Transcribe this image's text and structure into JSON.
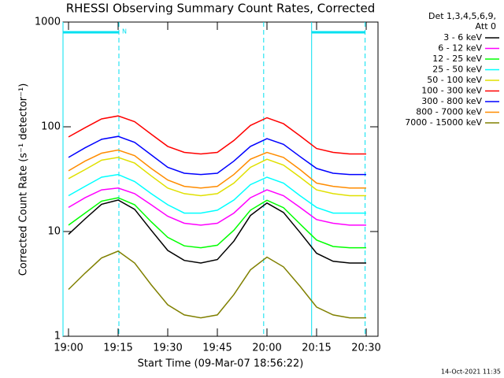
{
  "chart_data": {
    "type": "line",
    "title": "RHESSI Observing Summary Count Rates, Corrected",
    "legend_title": [
      "Det 1,3,4,5,6,9,",
      "Att 0"
    ],
    "y_label": "Corrected Count Rate (s⁻¹ detector⁻¹)",
    "x_label": "Start Time (09-Mar-07 18:56:22)",
    "footer": "14-Oct-2021 11:35",
    "log_y": true,
    "ylim": [
      1,
      1000
    ],
    "yticks": [
      1,
      10,
      100,
      1000
    ],
    "xlim": [
      "18:58:20",
      "20:33:34"
    ],
    "xticks": [
      "19:00",
      "19:15",
      "19:30",
      "19:45",
      "20:00",
      "20:15",
      "20:30"
    ],
    "night": [
      {
        "start": "18:58:20",
        "end": "19:15:14",
        "label": "N"
      },
      {
        "start": "20:13:30",
        "end": "20:29:40"
      }
    ],
    "marker_color": "#00e0f0",
    "dashed_x": [
      "19:59:00"
    ],
    "x": [
      "19:00",
      "19:05",
      "19:10",
      "19:15",
      "19:20",
      "19:25",
      "19:30",
      "19:35",
      "19:40",
      "19:45",
      "19:50",
      "19:55",
      "20:00",
      "20:05",
      "20:10",
      "20:15",
      "20:20",
      "20:25",
      "20:30"
    ],
    "series": [
      {
        "name": "3 - 6 keV",
        "color": "#000000",
        "values": [
          9.4,
          13.2,
          18.2,
          20,
          16.3,
          10.3,
          6.6,
          5.3,
          5,
          5.4,
          8.1,
          14.2,
          18.7,
          15.2,
          9.8,
          6.2,
          5.2,
          5,
          5
        ]
      },
      {
        "name": "6 - 12 keV",
        "color": "#ff00ff",
        "values": [
          17,
          21,
          25,
          26,
          23,
          18,
          14,
          12,
          11.5,
          12,
          15,
          21,
          25,
          22,
          17,
          13,
          12,
          11.5,
          11.5
        ]
      },
      {
        "name": "12 - 25 keV",
        "color": "#00ff00",
        "values": [
          11.5,
          15,
          19.5,
          21,
          18,
          12.4,
          8.8,
          7.3,
          7,
          7.4,
          10.3,
          16,
          19.9,
          16.9,
          11.8,
          8.3,
          7.2,
          7,
          7
        ]
      },
      {
        "name": "25 - 50 keV",
        "color": "#00ffff",
        "values": [
          22,
          27,
          33,
          35,
          30,
          23,
          18,
          15,
          15,
          16,
          20,
          28,
          33,
          29,
          22,
          17,
          15,
          15,
          15
        ]
      },
      {
        "name": "50 - 100 keV",
        "color": "#e0e000",
        "values": [
          32,
          39,
          48,
          51,
          45,
          34,
          26,
          23,
          22,
          23,
          29,
          41,
          49,
          43,
          33,
          25,
          23,
          22,
          22
        ]
      },
      {
        "name": "100 - 300 keV",
        "color": "#ff0000",
        "values": [
          80,
          98,
          119,
          127,
          112,
          85,
          65,
          57,
          55,
          57,
          74,
          103,
          122,
          107,
          82,
          62,
          57,
          55,
          55
        ]
      },
      {
        "name": "300 - 800 keV",
        "color": "#0000ff",
        "values": [
          51,
          63,
          76,
          81,
          71,
          54,
          41,
          36,
          35,
          36,
          47,
          65,
          77,
          68,
          52,
          40,
          36,
          35,
          35
        ]
      },
      {
        "name": "800 - 7000 keV",
        "color": "#ff8c00",
        "values": [
          38,
          47,
          56,
          60,
          53,
          40,
          31,
          27,
          26,
          27,
          35,
          49,
          57,
          51,
          39,
          29,
          27,
          26,
          26
        ]
      },
      {
        "name": "7000 - 15000 keV",
        "color": "#808000",
        "values": [
          2.8,
          4,
          5.6,
          6.5,
          5,
          3.1,
          2,
          1.6,
          1.5,
          1.6,
          2.5,
          4.3,
          5.7,
          4.6,
          3,
          1.9,
          1.6,
          1.5,
          1.5
        ]
      }
    ]
  }
}
